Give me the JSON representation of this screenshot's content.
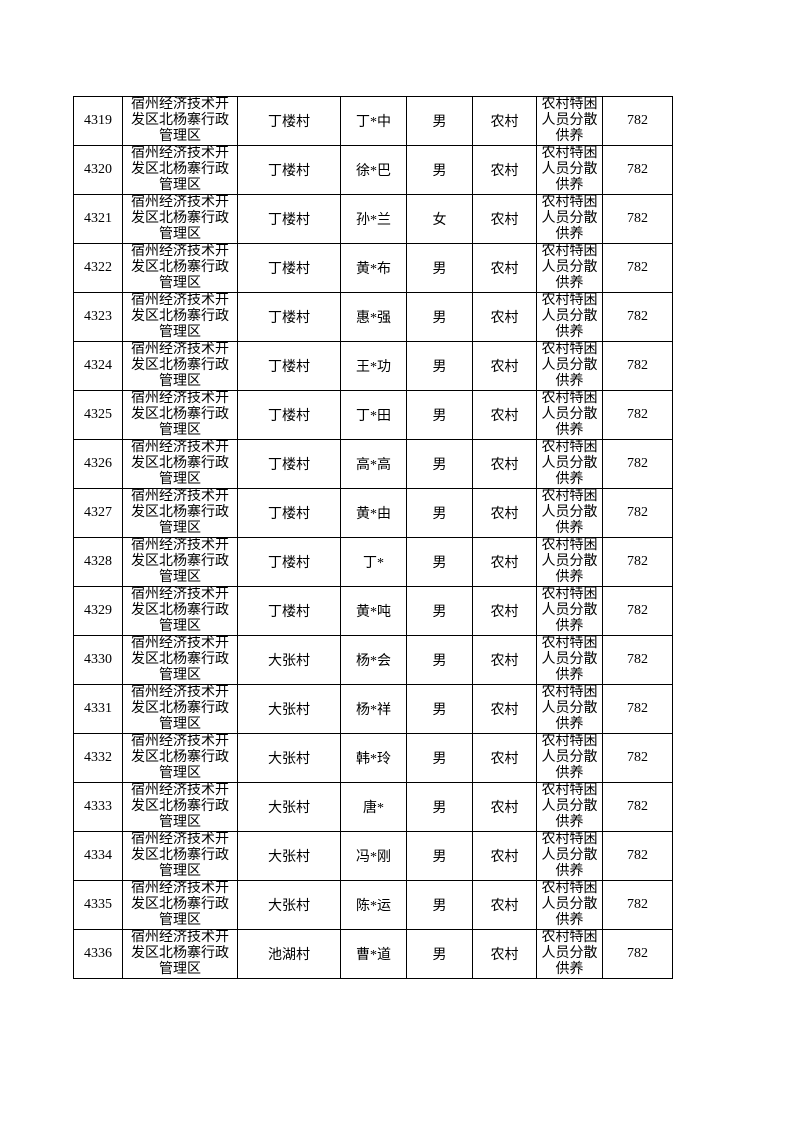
{
  "table": {
    "rows": [
      [
        "4319",
        "宿州经济技术开发区北杨寨行政管理区",
        "丁楼村",
        "丁*中",
        "男",
        "农村",
        "农村特困人员分散供养",
        "782"
      ],
      [
        "4320",
        "宿州经济技术开发区北杨寨行政管理区",
        "丁楼村",
        "徐*巴",
        "男",
        "农村",
        "农村特困人员分散供养",
        "782"
      ],
      [
        "4321",
        "宿州经济技术开发区北杨寨行政管理区",
        "丁楼村",
        "孙*兰",
        "女",
        "农村",
        "农村特困人员分散供养",
        "782"
      ],
      [
        "4322",
        "宿州经济技术开发区北杨寨行政管理区",
        "丁楼村",
        "黄*布",
        "男",
        "农村",
        "农村特困人员分散供养",
        "782"
      ],
      [
        "4323",
        "宿州经济技术开发区北杨寨行政管理区",
        "丁楼村",
        "惠*强",
        "男",
        "农村",
        "农村特困人员分散供养",
        "782"
      ],
      [
        "4324",
        "宿州经济技术开发区北杨寨行政管理区",
        "丁楼村",
        "王*功",
        "男",
        "农村",
        "农村特困人员分散供养",
        "782"
      ],
      [
        "4325",
        "宿州经济技术开发区北杨寨行政管理区",
        "丁楼村",
        "丁*田",
        "男",
        "农村",
        "农村特困人员分散供养",
        "782"
      ],
      [
        "4326",
        "宿州经济技术开发区北杨寨行政管理区",
        "丁楼村",
        "高*高",
        "男",
        "农村",
        "农村特困人员分散供养",
        "782"
      ],
      [
        "4327",
        "宿州经济技术开发区北杨寨行政管理区",
        "丁楼村",
        "黄*由",
        "男",
        "农村",
        "农村特困人员分散供养",
        "782"
      ],
      [
        "4328",
        "宿州经济技术开发区北杨寨行政管理区",
        "丁楼村",
        "丁*",
        "男",
        "农村",
        "农村特困人员分散供养",
        "782"
      ],
      [
        "4329",
        "宿州经济技术开发区北杨寨行政管理区",
        "丁楼村",
        "黄*吨",
        "男",
        "农村",
        "农村特困人员分散供养",
        "782"
      ],
      [
        "4330",
        "宿州经济技术开发区北杨寨行政管理区",
        "大张村",
        "杨*会",
        "男",
        "农村",
        "农村特困人员分散供养",
        "782"
      ],
      [
        "4331",
        "宿州经济技术开发区北杨寨行政管理区",
        "大张村",
        "杨*祥",
        "男",
        "农村",
        "农村特困人员分散供养",
        "782"
      ],
      [
        "4332",
        "宿州经济技术开发区北杨寨行政管理区",
        "大张村",
        "韩*玲",
        "男",
        "农村",
        "农村特困人员分散供养",
        "782"
      ],
      [
        "4333",
        "宿州经济技术开发区北杨寨行政管理区",
        "大张村",
        "唐*",
        "男",
        "农村",
        "农村特困人员分散供养",
        "782"
      ],
      [
        "4334",
        "宿州经济技术开发区北杨寨行政管理区",
        "大张村",
        "冯*刚",
        "男",
        "农村",
        "农村特困人员分散供养",
        "782"
      ],
      [
        "4335",
        "宿州经济技术开发区北杨寨行政管理区",
        "大张村",
        "陈*运",
        "男",
        "农村",
        "农村特困人员分散供养",
        "782"
      ],
      [
        "4336",
        "宿州经济技术开发区北杨寨行政管理区",
        "池湖村",
        "曹*道",
        "男",
        "农村",
        "农村特困人员分散供养",
        "782"
      ]
    ]
  }
}
